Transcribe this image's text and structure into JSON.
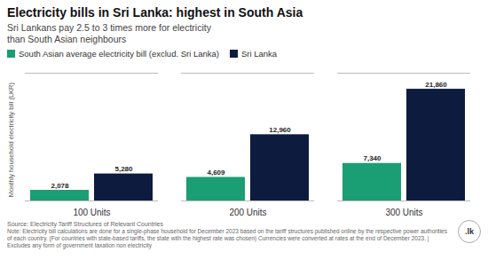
{
  "chart_data": {
    "type": "bar",
    "title": "Electricity bills in Sri Lanka: highest in South Asia",
    "subtitle": "Sri Lankans pay 2.5 to 3 times more for electricity\nthan South Asian neighbours",
    "ylabel": "Monthly household electricity bill (LKR)",
    "categories": [
      "100 Units",
      "200 Units",
      "300 Units"
    ],
    "series": [
      {
        "name": "South Asian average electricity bill (exclud. Sri Lanka)",
        "color": "#1a9e74",
        "values": [
          2078,
          4609,
          7340
        ],
        "value_labels": [
          "2,078",
          "4,609",
          "7,340"
        ]
      },
      {
        "name": "Sri Lanka",
        "color": "#0d1b3e",
        "values": [
          5280,
          12960,
          21860
        ],
        "value_labels": [
          "5,280",
          "12,960",
          "21,860"
        ]
      }
    ],
    "ylim": [
      0,
      25000
    ],
    "legend": "upper left",
    "data_labels": true,
    "tick_labels": "x",
    "grid": false,
    "annotations": [
      "Source: Electricity Tariff Structures of Relevant Countries",
      "Note: Electricity bill calculations are done for a single-phase household for December 2023 based on the tariff structures published online by the respective power authorities of each country. (For countries with state-based tariffs, the state with the highest rate was chosen) Currencies were converted at rates at the end of December 2023. | Excludes any form of government taxation non electricity",
      ".lk"
    ]
  }
}
